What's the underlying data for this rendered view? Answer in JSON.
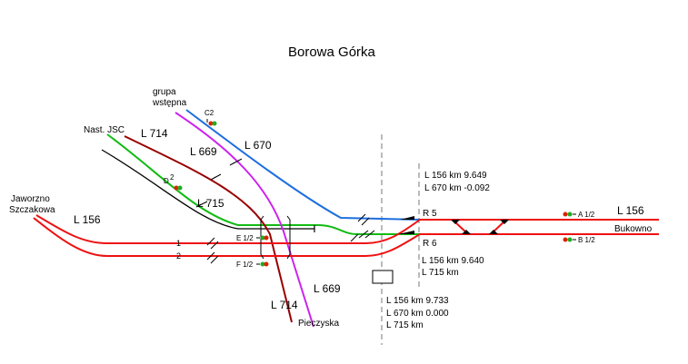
{
  "title": "Borowa Górka",
  "places": {
    "grupa": "grupa",
    "wstepna": "wstępna",
    "nast_jsc": "Nast. JSC",
    "jaworzno": "Jaworzno",
    "szczakowa": "Szczakowa",
    "pieczyska": "Pieczyska",
    "bukowno": "Bukowno"
  },
  "lines": {
    "l670": "L 670",
    "l714_top": "L 714",
    "l669_top": "L 669",
    "l715": "L 715",
    "l156_left": "L 156",
    "l714_bottom": "L 714",
    "l669_bottom": "L 669",
    "l156_right": "L 156"
  },
  "tracks": {
    "t1": "1",
    "t2": "2"
  },
  "signals": {
    "c2": "C2",
    "d": "D",
    "d_sup": "2",
    "e": "E 1/2",
    "f": "F 1/2",
    "a": "A 1/2",
    "b": "B 1/2"
  },
  "signal_boxes": {
    "r5": "R 5",
    "r6": "R 6"
  },
  "km_marks": {
    "upper_1": "L 156 km  9.649",
    "upper_2": "L 670 km -0.092",
    "r6_1": "L 156 km 9.640",
    "r6_2": "L 715 km",
    "bottom_1": "L 156 km 9.733",
    "bottom_2": "L 670 km 0.000",
    "bottom_3": "L 715 km"
  },
  "colors": {
    "l156": "#ee1111",
    "l670": "#1e6fe0",
    "l669": "#cc22ee",
    "l714": "#990000",
    "l715": "#11bb11",
    "jsc_siding": "#000000",
    "signal_red": "#dd2200",
    "signal_green": "#22aa22"
  }
}
